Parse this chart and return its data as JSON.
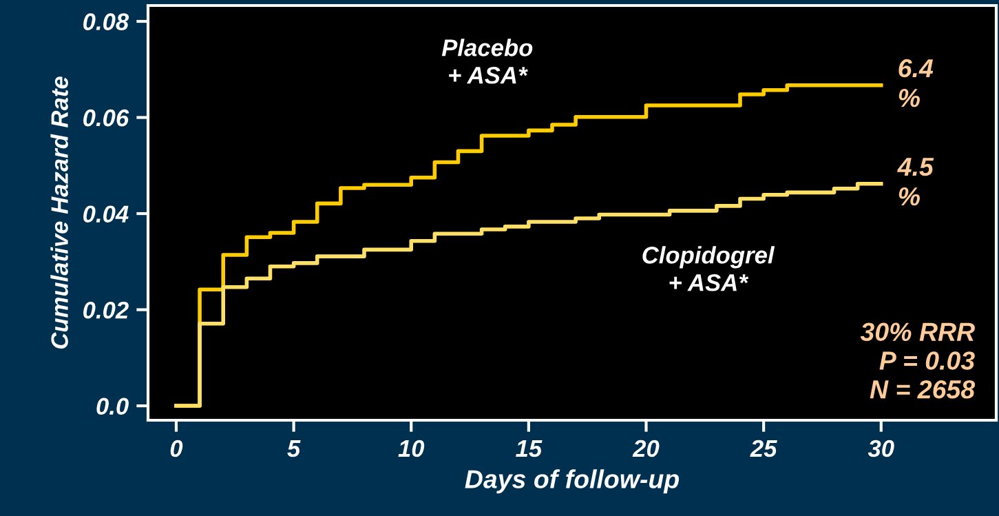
{
  "chart_data": {
    "type": "step",
    "xlabel": "Days of follow-up",
    "ylabel": "Cumulative Hazard Rate",
    "xlim": [
      -1.2,
      34.9
    ],
    "xticks": [
      0,
      5,
      10,
      15,
      20,
      25,
      30
    ],
    "ylim": [
      -0.003,
      0.0833
    ],
    "yticks": [
      {
        "value": 0,
        "label": "0.0"
      },
      0.02,
      0.04,
      0.06,
      0.08
    ],
    "line_style": "solid",
    "marker": "none",
    "series": [
      {
        "name": "Placebo\n+ ASA*",
        "color": "#ffcc00",
        "x": [
          0,
          1,
          2,
          3,
          4,
          5,
          6,
          7,
          8,
          10,
          11,
          12,
          13,
          15,
          16,
          17,
          20,
          24,
          25,
          26,
          30
        ],
        "values": [
          0,
          0.0242,
          0.0314,
          0.0351,
          0.036,
          0.0383,
          0.0421,
          0.0453,
          0.046,
          0.0475,
          0.0507,
          0.053,
          0.0562,
          0.0573,
          0.0585,
          0.0601,
          0.0625,
          0.0648,
          0.0657,
          0.0667,
          0.0667
        ]
      },
      {
        "name": "Clopidogrel\n+ ASA*",
        "color": "#ffe066",
        "x": [
          0,
          1,
          2,
          3,
          4,
          5,
          6,
          8,
          10,
          11,
          13,
          14,
          15,
          17,
          18,
          21,
          23,
          24,
          25,
          26,
          28,
          29,
          30
        ],
        "values": [
          0,
          0.0171,
          0.0247,
          0.0265,
          0.029,
          0.0297,
          0.0311,
          0.0325,
          0.0343,
          0.0358,
          0.0367,
          0.0373,
          0.0383,
          0.039,
          0.0398,
          0.0406,
          0.0416,
          0.0431,
          0.0439,
          0.0444,
          0.0452,
          0.0462,
          0.0462
        ]
      }
    ],
    "annotations": [
      {
        "text": "6.4\n%",
        "x": 30,
        "y": 0.0667
      },
      {
        "text": "4.5\n%",
        "x": 30,
        "y": 0.0462
      },
      "30% RRR\nP = 0.03\nN = 2658"
    ]
  }
}
